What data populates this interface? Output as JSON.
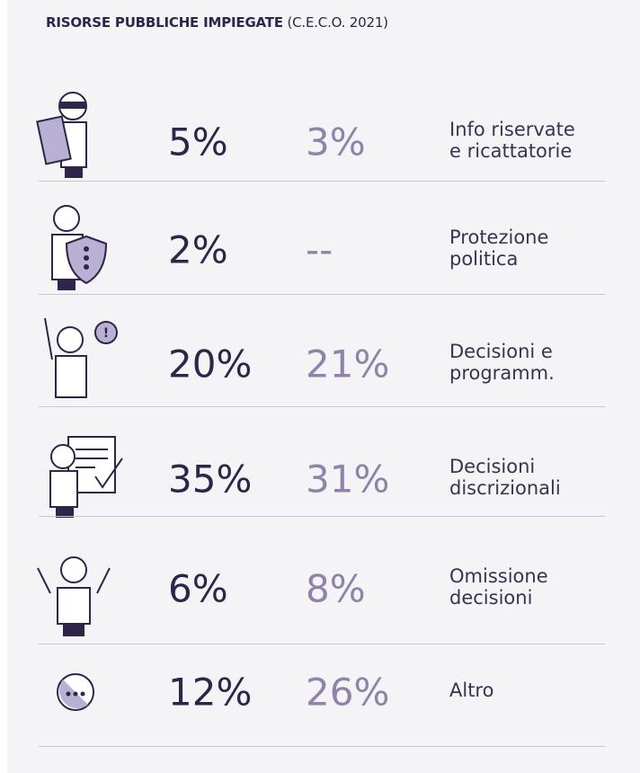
{
  "header": {
    "title": "RISORSE PUBBLICHE IMPIEGATE",
    "subtitle": "(C.E.C.O. 2021)"
  },
  "table": {
    "rows": [
      {
        "value1": "5%",
        "value2": "3%",
        "label": [
          "Info riservate",
          "e ricattatorie"
        ]
      },
      {
        "value1": "2%",
        "value2": "--",
        "label": [
          "Protezione",
          "politica"
        ]
      },
      {
        "value1": "20%",
        "value2": "21%",
        "label": [
          "Decisioni e",
          "programm."
        ]
      },
      {
        "value1": "35%",
        "value2": "31%",
        "label": [
          "Decisioni",
          "discrizionali"
        ]
      },
      {
        "value1": "6%",
        "value2": "8%",
        "label": [
          "Omissione",
          "decisioni"
        ]
      },
      {
        "value1": "12%",
        "value2": "26%",
        "label": [
          "Altro"
        ]
      }
    ]
  }
}
